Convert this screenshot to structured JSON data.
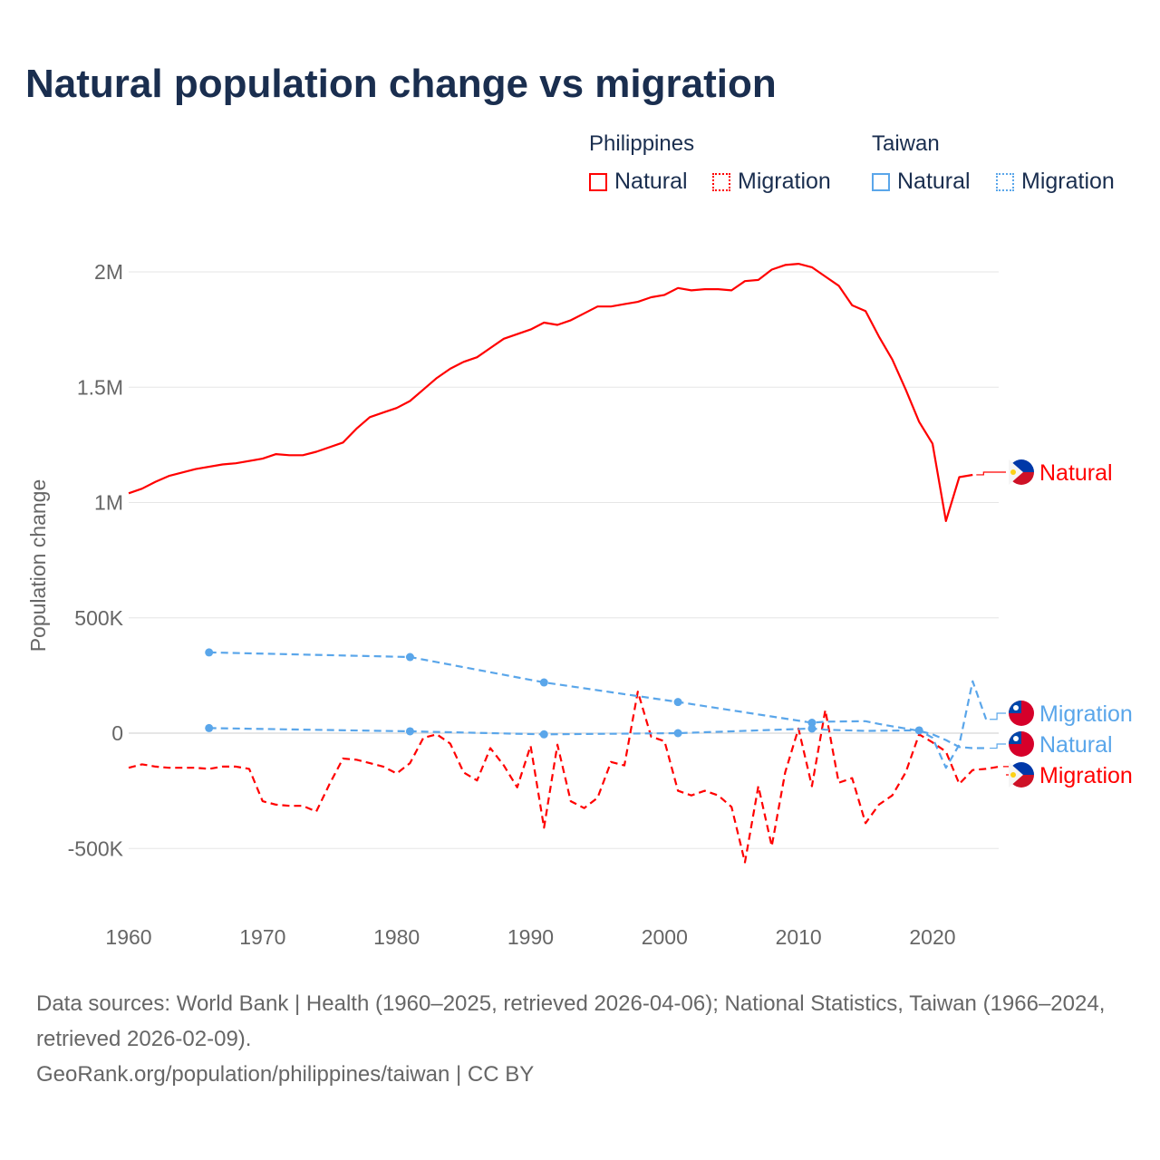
{
  "title": "Natural population change vs migration",
  "legend": {
    "groups": [
      {
        "name": "Philippines",
        "items": [
          "Natural",
          "Migration"
        ]
      },
      {
        "name": "Taiwan",
        "items": [
          "Natural",
          "Migration"
        ]
      }
    ]
  },
  "colors": {
    "philippines": "#ff0000",
    "taiwan": "#5aa6ea",
    "text": "#1a2e4f",
    "grid": "#e6e6e6"
  },
  "footer": {
    "sources": "Data sources: World Bank | Health (1960–2025, retrieved 2026-04-06); National Statistics, Taiwan (1966–2024, retrieved 2026-02-09).",
    "credit": "GeoRank.org/population/philippines/taiwan | CC BY"
  },
  "chart_data": {
    "type": "line",
    "ylabel": "Population change",
    "xlim": [
      1960,
      2025
    ],
    "ylim": [
      -600000,
      2100000
    ],
    "xticks": [
      1960,
      1970,
      1980,
      1990,
      2000,
      2010,
      2020
    ],
    "yticks": [
      {
        "v": -500000,
        "l": "-500K"
      },
      {
        "v": 0,
        "l": "0"
      },
      {
        "v": 500000,
        "l": "500K"
      },
      {
        "v": 1000000,
        "l": "1M"
      },
      {
        "v": 1500000,
        "l": "1.5M"
      },
      {
        "v": 2000000,
        "l": "2M"
      }
    ],
    "series": [
      {
        "name": "Natural",
        "country": "Philippines",
        "style": "solid",
        "color": "#ff0000",
        "x": [
          1960,
          1961,
          1962,
          1963,
          1965,
          1967,
          1968,
          1970,
          1971,
          1972,
          1973,
          1974,
          1976,
          1977,
          1978,
          1979,
          1980,
          1981,
          1982,
          1983,
          1984,
          1985,
          1986,
          1987,
          1988,
          1989,
          1990,
          1991,
          1992,
          1993,
          1994,
          1995,
          1996,
          1997,
          1998,
          1999,
          2000,
          2001,
          2002,
          2003,
          2004,
          2005,
          2006,
          2007,
          2008,
          2009,
          2010,
          2011,
          2012,
          2013,
          2014,
          2015,
          2016,
          2017,
          2018,
          2019,
          2020,
          2021,
          2022,
          2023
        ],
        "y": [
          1040000,
          1060000,
          1090000,
          1115000,
          1145000,
          1165000,
          1170000,
          1190000,
          1210000,
          1205000,
          1205000,
          1220000,
          1260000,
          1320000,
          1370000,
          1390000,
          1410000,
          1440000,
          1490000,
          1540000,
          1580000,
          1610000,
          1630000,
          1670000,
          1710000,
          1730000,
          1750000,
          1780000,
          1770000,
          1790000,
          1820000,
          1850000,
          1850000,
          1860000,
          1870000,
          1890000,
          1900000,
          1930000,
          1920000,
          1925000,
          1925000,
          1920000,
          1960000,
          1965000,
          2010000,
          2030000,
          2035000,
          2020000,
          1980000,
          1940000,
          1855000,
          1830000,
          1720000,
          1620000,
          1490000,
          1350000,
          1255000,
          920000,
          1110000,
          1120000
        ]
      },
      {
        "name": "Migration",
        "country": "Philippines",
        "style": "dashed",
        "color": "#ff0000",
        "x": [
          1960,
          1961,
          1962,
          1963,
          1965,
          1966,
          1967,
          1968,
          1969,
          1970,
          1971,
          1972,
          1973,
          1974,
          1975,
          1976,
          1977,
          1978,
          1979,
          1980,
          1981,
          1982,
          1983,
          1984,
          1985,
          1986,
          1987,
          1988,
          1989,
          1990,
          1991,
          1992,
          1993,
          1994,
          1995,
          1996,
          1997,
          1998,
          1999,
          2000,
          2001,
          2002,
          2003,
          2004,
          2005,
          2006,
          2007,
          2008,
          2009,
          2010,
          2011,
          2012,
          2013,
          2014,
          2015,
          2016,
          2017,
          2018,
          2019,
          2020,
          2021,
          2022,
          2023,
          2024,
          2025
        ],
        "y": [
          -150000,
          -135000,
          -145000,
          -150000,
          -150000,
          -155000,
          -145000,
          -145000,
          -155000,
          -295000,
          -310000,
          -315000,
          -315000,
          -340000,
          -220000,
          -110000,
          -115000,
          -130000,
          -145000,
          -175000,
          -130000,
          -20000,
          -5000,
          -45000,
          -170000,
          -205000,
          -65000,
          -140000,
          -235000,
          -55000,
          -410000,
          -50000,
          -295000,
          -325000,
          -280000,
          -125000,
          -140000,
          180000,
          -15000,
          -35000,
          -250000,
          -270000,
          -250000,
          -270000,
          -320000,
          -560000,
          -230000,
          -490000,
          -170000,
          20000,
          -230000,
          100000,
          -215000,
          -195000,
          -390000,
          -310000,
          -270000,
          -170000,
          -5000,
          -40000,
          -80000,
          -220000,
          -160000,
          -155000,
          -145000
        ]
      },
      {
        "name": "Natural",
        "country": "Taiwan",
        "style": "dashed",
        "color": "#5aa6ea",
        "markers": [
          1966,
          1981,
          1991,
          2001,
          2011
        ],
        "x": [
          1966,
          1981,
          1991,
          2001,
          2011,
          2012,
          2015,
          2016,
          2017,
          2018,
          2019,
          2020,
          2021,
          2022,
          2023,
          2024
        ],
        "y": [
          350000,
          330000,
          220000,
          135000,
          45000,
          50000,
          52000,
          40000,
          30000,
          20000,
          10000,
          -5000,
          -30000,
          -60000,
          -65000,
          -65000
        ]
      },
      {
        "name": "Migration",
        "country": "Taiwan",
        "style": "dashed",
        "color": "#5aa6ea",
        "markers": [
          1966,
          1981,
          1991,
          2001,
          2011,
          2019
        ],
        "x": [
          1966,
          1981,
          1991,
          2001,
          2011,
          2012,
          2015,
          2019,
          2020,
          2021,
          2022,
          2023,
          2024
        ],
        "y": [
          22000,
          8000,
          -5000,
          0,
          20000,
          15000,
          10000,
          12000,
          -20000,
          -150000,
          -50000,
          225000,
          60000
        ]
      }
    ],
    "end_labels": [
      {
        "text": "Natural",
        "country": "Philippines"
      },
      {
        "text": "Migration",
        "country": "Taiwan"
      },
      {
        "text": "Natural",
        "country": "Taiwan"
      },
      {
        "text": "Migration",
        "country": "Philippines"
      }
    ]
  }
}
